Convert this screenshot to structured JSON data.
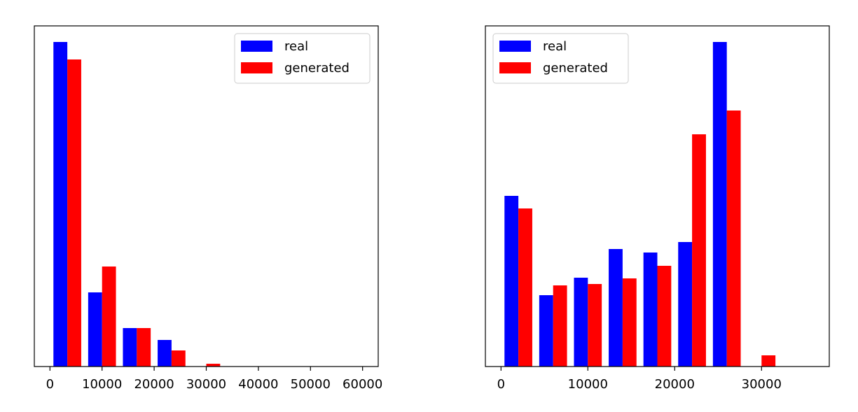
{
  "chart_data": [
    {
      "type": "histogram",
      "bins": [
        0,
        6667,
        13333,
        20000,
        26667,
        33333,
        40000,
        46667,
        53333,
        60000
      ],
      "series": [
        {
          "name": "real",
          "color": "#0000ff",
          "values": [
            464,
            106,
            55,
            38,
            0,
            0,
            0,
            0,
            0
          ]
        },
        {
          "name": "generated",
          "color": "#ff0000",
          "values": [
            439,
            143,
            55,
            23,
            4,
            0,
            0,
            0,
            0
          ]
        }
      ],
      "xlim": [
        -3000,
        63000
      ],
      "ylim": [
        0,
        487
      ],
      "xticks": [
        0,
        10000,
        20000,
        30000,
        40000,
        50000,
        60000
      ],
      "legend": "upper right"
    },
    {
      "type": "histogram",
      "bins": [
        0,
        4000,
        8000,
        12000,
        16000,
        20000,
        24000,
        28000,
        32000,
        36000
      ],
      "series": [
        {
          "name": "real",
          "color": "#0000ff",
          "values": [
            244,
            102,
            127,
            168,
            163,
            178,
            464,
            0,
            0
          ]
        },
        {
          "name": "generated",
          "color": "#ff0000",
          "values": [
            226,
            116,
            118,
            126,
            144,
            332,
            366,
            16,
            0
          ]
        }
      ],
      "xlim": [
        -1800,
        37800
      ],
      "ylim": [
        0,
        487
      ],
      "xticks": [
        0,
        10000,
        20000,
        30000
      ],
      "legend": "upper left"
    }
  ]
}
